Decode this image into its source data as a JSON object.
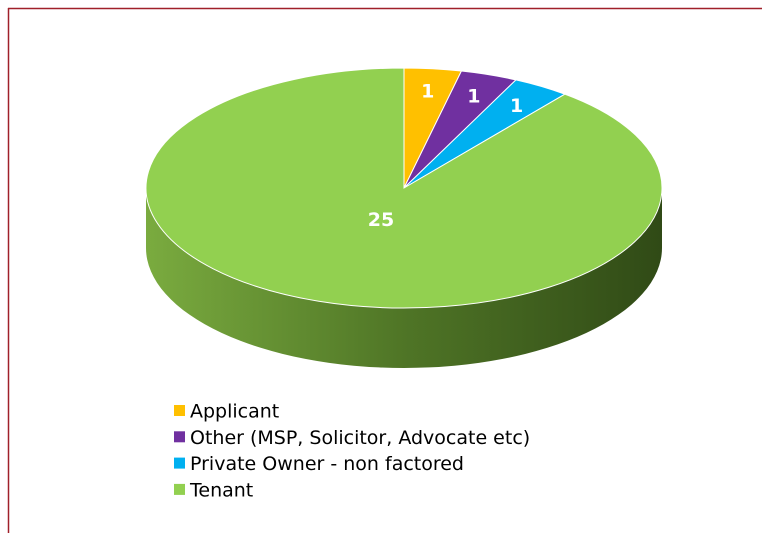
{
  "chart_data": {
    "type": "pie3d",
    "categories": [
      "Applicant",
      "Other (MSP, Solicitor, Advocate etc)",
      "Private Owner - non factored",
      "Tenant"
    ],
    "values": [
      1,
      1,
      1,
      25
    ],
    "colors": [
      "#ffc000",
      "#7030a0",
      "#00b0f0",
      "#92d050"
    ],
    "legend": "bottom"
  }
}
